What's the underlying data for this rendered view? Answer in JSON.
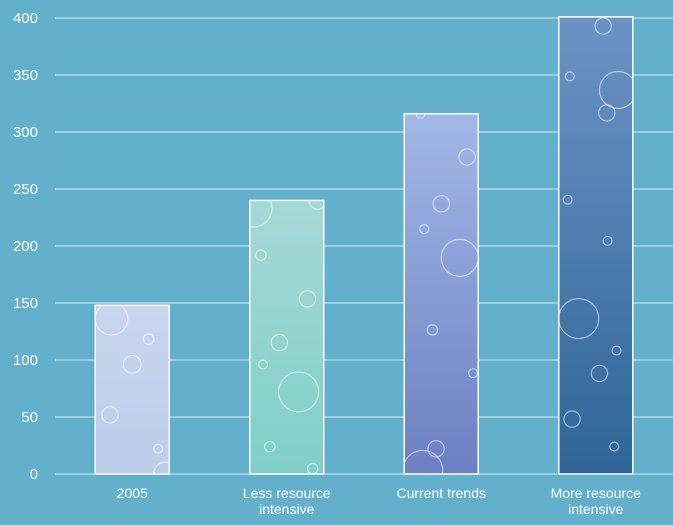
{
  "chart_data": {
    "type": "bar",
    "categories": [
      "2005",
      "Less resource intensive",
      "Current trends",
      "More resource intensive"
    ],
    "category_label_lines": [
      [
        "2005"
      ],
      [
        "Less resource",
        "intensive"
      ],
      [
        "Current trends"
      ],
      [
        "More resource",
        "intensive"
      ]
    ],
    "values": [
      148,
      240,
      316,
      401
    ],
    "ylim": [
      0,
      400
    ],
    "yticks": [
      0,
      50,
      100,
      150,
      200,
      250,
      300,
      350,
      400
    ],
    "grid": true,
    "legend": "none",
    "title": "",
    "xlabel": "",
    "ylabel": ""
  },
  "colors": {
    "background": "#62b0cc",
    "grid": "#ffffff",
    "bar_gradients": [
      [
        "#c9d6ee",
        "#bccdea"
      ],
      [
        "#a6d8d8",
        "#7fcfc8"
      ],
      [
        "#a2b8e6",
        "#6c7fc2"
      ],
      [
        "#6c93c4",
        "#2f6598"
      ]
    ]
  }
}
